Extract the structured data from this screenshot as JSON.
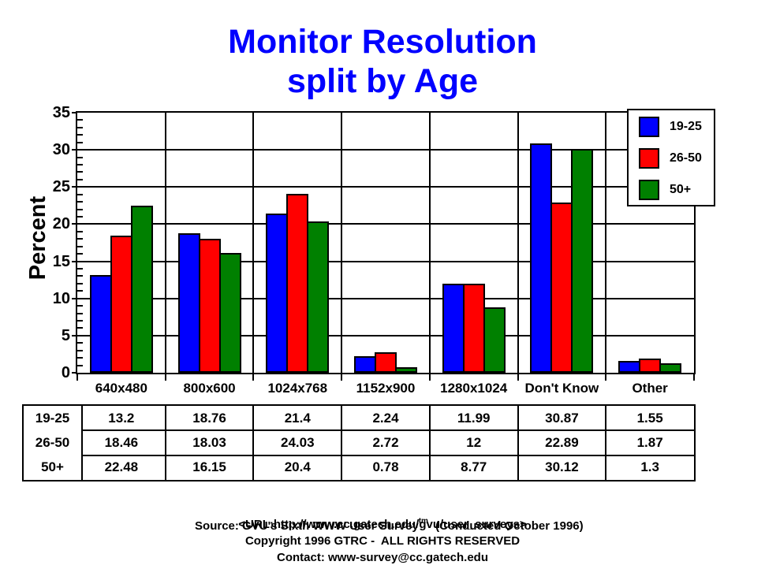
{
  "title": {
    "line1": "Monitor Resolution",
    "line2": "split by Age"
  },
  "colors": {
    "title": "#0000ff",
    "axis": "#000000",
    "background": "#ffffff",
    "series_blue": "#0000ff",
    "series_red": "#ff0000",
    "series_green": "#008000"
  },
  "chart_data": {
    "type": "bar",
    "title": "Monitor Resolution split by Age",
    "xlabel": "",
    "ylabel": "Percent",
    "ylim": [
      0,
      35
    ],
    "yticks": [
      0,
      5,
      10,
      15,
      20,
      25,
      30,
      35
    ],
    "minor_tick_step": 1,
    "grid": true,
    "legend_position": "top-right",
    "categories": [
      "640x480",
      "800x600",
      "1024x768",
      "1152x900",
      "1280x1024",
      "Don't Know",
      "Other"
    ],
    "series": [
      {
        "name": "19-25",
        "color": "#0000ff",
        "values": [
          13.2,
          18.76,
          21.4,
          2.24,
          11.99,
          30.87,
          1.55
        ]
      },
      {
        "name": "26-50",
        "color": "#ff0000",
        "values": [
          18.46,
          18.03,
          24.03,
          2.72,
          12,
          22.89,
          1.87
        ]
      },
      {
        "name": "50+",
        "color": "#008000",
        "values": [
          22.48,
          16.15,
          20.4,
          0.78,
          8.77,
          30.12,
          1.3
        ]
      }
    ]
  },
  "footer": {
    "line1_pre": "Source: GVU's Sixth WWW User Survey",
    "line1_sup": "tm",
    "line1_post": " (Conducted October 1996)",
    "line2": "<URL:http://www.cc.gatech.edu/gvu/user_surveys>",
    "line3": "Copyright 1996 GTRC -  ALL RIGHTS RESERVED",
    "line4": "Contact: www-survey@cc.gatech.edu"
  }
}
